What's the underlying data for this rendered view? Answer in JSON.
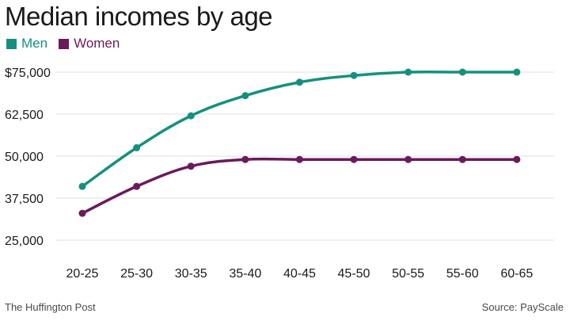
{
  "chart_data": {
    "type": "line",
    "title": "Median incomes by age",
    "categories": [
      "20-25",
      "25-30",
      "30-35",
      "35-40",
      "40-45",
      "45-50",
      "50-55",
      "55-60",
      "60-65"
    ],
    "yticks": [
      "$75,000",
      "62,500",
      "50,000",
      "37,500",
      "25,000"
    ],
    "ytick_values": [
      75000,
      62500,
      50000,
      37500,
      25000
    ],
    "ylim": [
      25000,
      75000
    ],
    "grid": true,
    "legend": "top-left",
    "series": [
      {
        "name": "Men",
        "color": "#16907e",
        "values": [
          41000,
          52500,
          62000,
          68000,
          72000,
          74000,
          75000,
          75000,
          75000
        ]
      },
      {
        "name": "Women",
        "color": "#6b1a5c",
        "values": [
          33000,
          41000,
          47000,
          49000,
          49000,
          49000,
          49000,
          49000,
          49000
        ]
      }
    ]
  },
  "footer": {
    "source_left": "The Huffington Post",
    "source_right": "Source: PayScale"
  }
}
